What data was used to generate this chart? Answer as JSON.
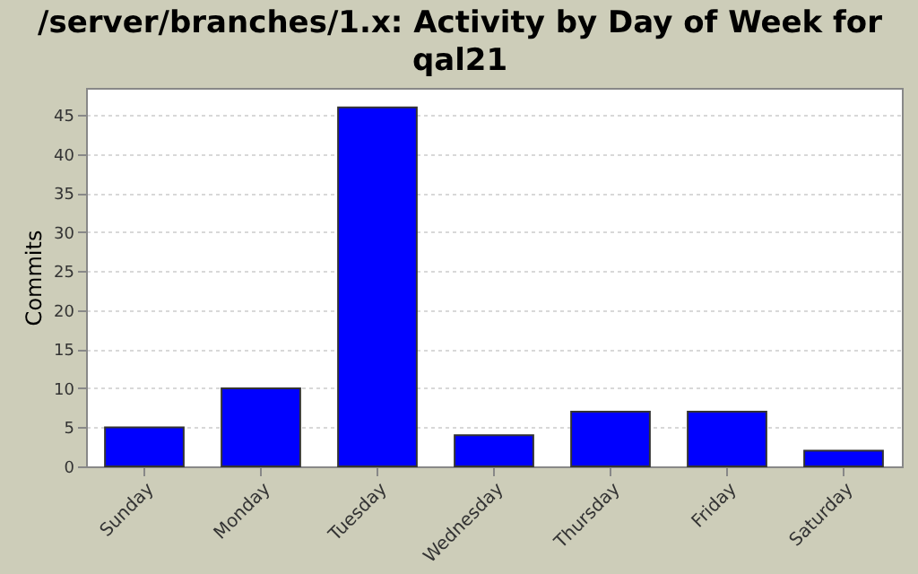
{
  "chart_data": {
    "type": "bar",
    "title": "/server/branches/1.x: Activity by Day of Week for qal21",
    "ylabel": "Commits",
    "categories": [
      "Sunday",
      "Monday",
      "Tuesday",
      "Wednesday",
      "Thursday",
      "Friday",
      "Saturday"
    ],
    "values": [
      5,
      10,
      46,
      4,
      7,
      7,
      2
    ],
    "color": "#0000ff",
    "ylim": [
      0,
      48.5
    ],
    "yticks": [
      0,
      5,
      10,
      15,
      20,
      25,
      30,
      35,
      40,
      45
    ],
    "grid": "y"
  }
}
